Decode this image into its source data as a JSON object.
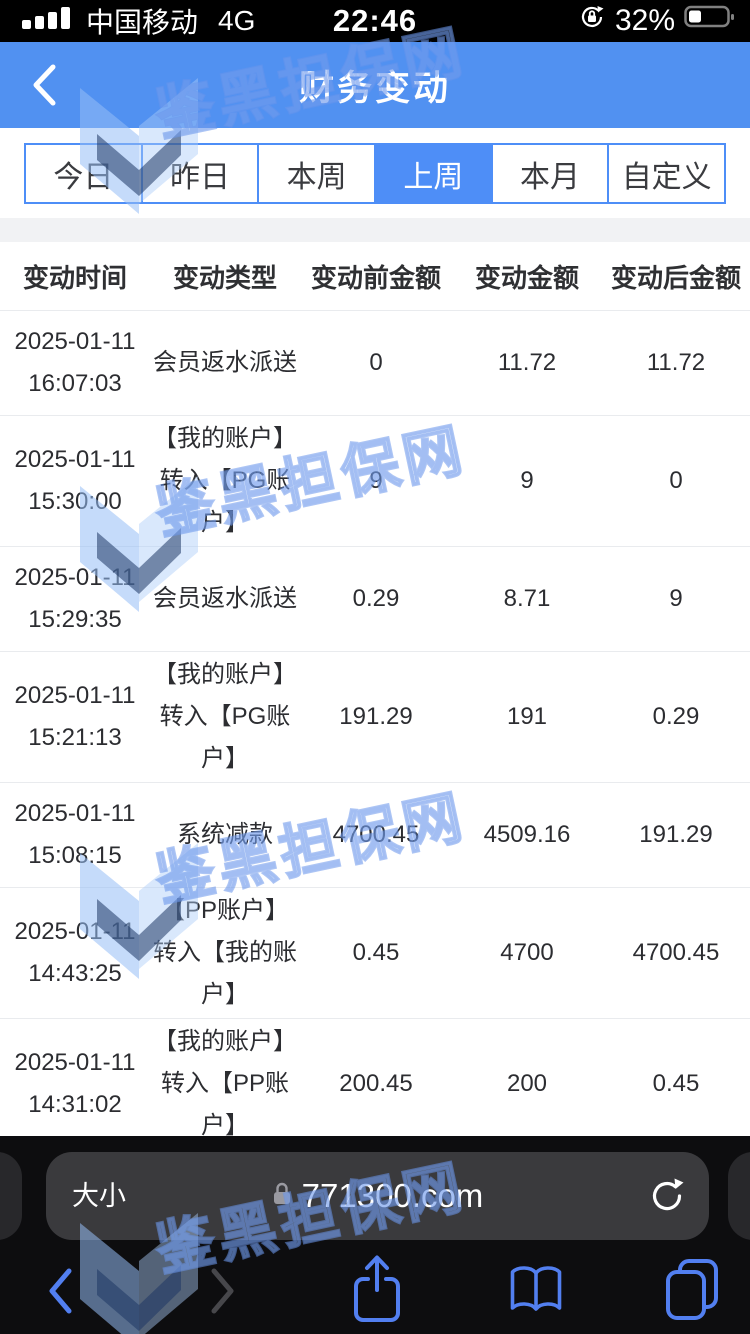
{
  "status_bar": {
    "carrier": "中国移动",
    "network": "4G",
    "time": "22:46",
    "battery_percent": "32%"
  },
  "header": {
    "title": "财务变动"
  },
  "filters": {
    "items": [
      {
        "label": "今日",
        "selected": false
      },
      {
        "label": "昨日",
        "selected": false
      },
      {
        "label": "本周",
        "selected": false
      },
      {
        "label": "上周",
        "selected": true
      },
      {
        "label": "本月",
        "selected": false
      },
      {
        "label": "自定义",
        "selected": false
      }
    ]
  },
  "table": {
    "columns": [
      "变动时间",
      "变动类型",
      "变动前金额",
      "变动金额",
      "变动后金额"
    ],
    "rows": [
      {
        "date": "2025-01-11",
        "time": "16:07:03",
        "type": "会员返水派送",
        "before": "0",
        "amount": "11.72",
        "after": "11.72"
      },
      {
        "date": "2025-01-11",
        "time": "15:30:00",
        "type": "【我的账户】转入【PG账户】",
        "before": "9",
        "amount": "9",
        "after": "0"
      },
      {
        "date": "2025-01-11",
        "time": "15:29:35",
        "type": "会员返水派送",
        "before": "0.29",
        "amount": "8.71",
        "after": "9"
      },
      {
        "date": "2025-01-11",
        "time": "15:21:13",
        "type": "【我的账户】转入【PG账户】",
        "before": "191.29",
        "amount": "191",
        "after": "0.29"
      },
      {
        "date": "2025-01-11",
        "time": "15:08:15",
        "type": "系统减款",
        "before": "4700.45",
        "amount": "4509.16",
        "after": "191.29"
      },
      {
        "date": "2025-01-11",
        "time": "14:43:25",
        "type": "【PP账户】转入【我的账户】",
        "before": "0.45",
        "amount": "4700",
        "after": "4700.45"
      },
      {
        "date": "2025-01-11",
        "time": "14:31:02",
        "type": "【我的账户】转入【PP账户】",
        "before": "200.45",
        "amount": "200",
        "after": "0.45"
      }
    ]
  },
  "browser": {
    "text_size_label": "大小",
    "url": "771300.com"
  },
  "watermark": {
    "text": "鉴黑担保网"
  },
  "colors": {
    "header_blue": "#5191f1",
    "tab_blue": "#4e8ef7",
    "icon_blue": "#527ff0",
    "chrome_bg": "#0d0d0f",
    "pill_bg": "#3a3a3d",
    "status_bg": "#000000"
  },
  "icons": {
    "back": "chevron-left",
    "forward": "chevron-right",
    "share": "share-up-arrow",
    "bookmarks": "open-book",
    "tabs": "overlapping-squares",
    "reload": "reload-circular-arrow",
    "lock": "padlock",
    "signal": "signal-bars",
    "battery": "battery",
    "rotation_lock": "rotation-lock"
  }
}
